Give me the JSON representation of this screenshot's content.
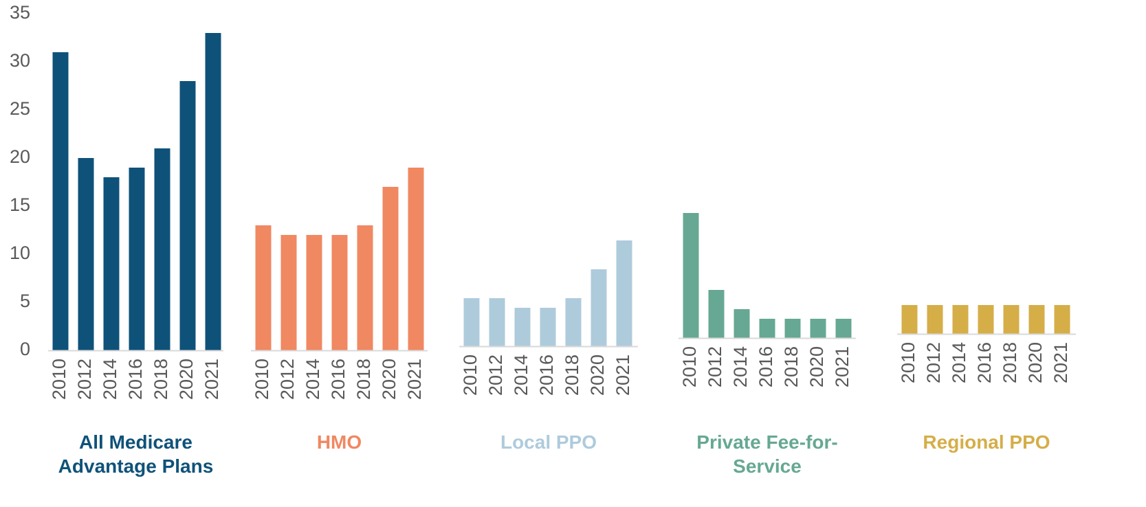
{
  "chart_data": {
    "type": "bar",
    "ylim": [
      0,
      35
    ],
    "yticks": [
      0,
      5,
      10,
      15,
      20,
      25,
      30,
      35
    ],
    "panels": [
      {
        "name": "All Medicare Advantage Plans",
        "color": "#0f5279",
        "categories": [
          "2010",
          "2012",
          "2014",
          "2016",
          "2018",
          "2020",
          "2021"
        ],
        "values": [
          31,
          20,
          18,
          19,
          21,
          28,
          33
        ]
      },
      {
        "name": "HMO",
        "color": "#f08862",
        "categories": [
          "2010",
          "2012",
          "2014",
          "2016",
          "2018",
          "2020",
          "2021"
        ],
        "values": [
          13,
          12,
          12,
          12,
          13,
          17,
          19
        ]
      },
      {
        "name": "Local PPO",
        "color": "#aecbdc",
        "categories": [
          "2010",
          "2012",
          "2014",
          "2016",
          "2018",
          "2020",
          "2021"
        ],
        "values": [
          5,
          5,
          4,
          4,
          5,
          8,
          11
        ]
      },
      {
        "name": "Private Fee-for-Service",
        "color": "#66a893",
        "categories": [
          "2010",
          "2012",
          "2014",
          "2016",
          "2018",
          "2020",
          "2021"
        ],
        "values": [
          13,
          5,
          3,
          2,
          2,
          2,
          2
        ]
      },
      {
        "name": "Regional PPO",
        "color": "#d5ae48",
        "categories": [
          "2010",
          "2012",
          "2014",
          "2016",
          "2018",
          "2020",
          "2021"
        ],
        "values": [
          3,
          3,
          3,
          3,
          3,
          3,
          3
        ]
      }
    ]
  }
}
